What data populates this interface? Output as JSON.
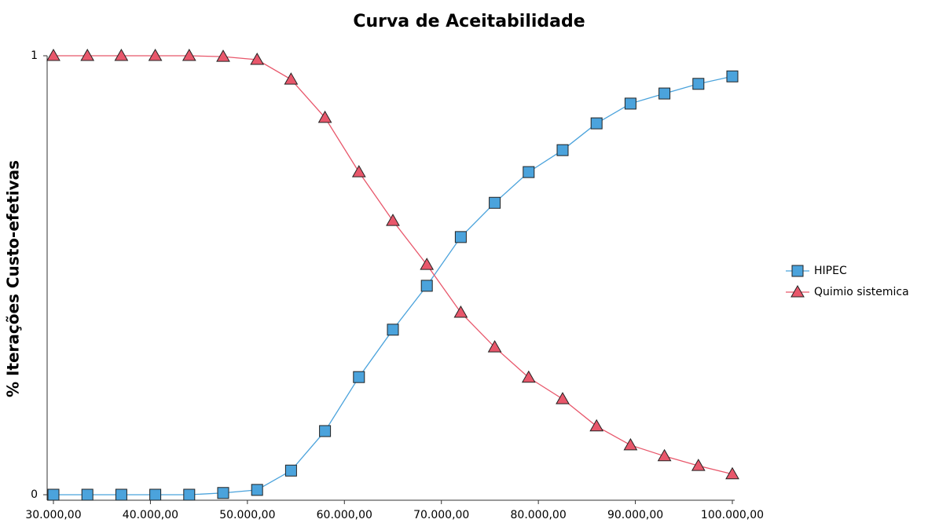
{
  "chart_data": {
    "type": "line",
    "title": "Curva de Aceitabilidade",
    "y_label": "% Iterações Custo-efetivas",
    "x": [
      30000,
      33500,
      37000,
      40500,
      44000,
      47500,
      51000,
      54500,
      58000,
      61500,
      65000,
      68500,
      72000,
      75500,
      79000,
      82500,
      86000,
      89500,
      93000,
      96500,
      100000
    ],
    "series": [
      {
        "name": "HIPEC",
        "color": "#4ba3dc",
        "marker": "square",
        "values": [
          0,
          0,
          0,
          0,
          0,
          0.004,
          0.011,
          0.055,
          0.145,
          0.268,
          0.376,
          0.476,
          0.587,
          0.665,
          0.735,
          0.785,
          0.846,
          0.891,
          0.914,
          0.936,
          0.953
        ]
      },
      {
        "name": "Quimio sistemica",
        "color": "#e8576b",
        "marker": "triangle",
        "values": [
          1,
          1,
          1,
          1,
          1,
          0.998,
          0.991,
          0.946,
          0.859,
          0.735,
          0.624,
          0.524,
          0.415,
          0.336,
          0.267,
          0.218,
          0.156,
          0.113,
          0.088,
          0.066,
          0.047
        ]
      }
    ],
    "xlim": [
      30000,
      100000
    ],
    "xticks": [
      {
        "value": 30000,
        "label": "30.000,00"
      },
      {
        "value": 40000,
        "label": "40.000,00"
      },
      {
        "value": 50000,
        "label": "50.000,00"
      },
      {
        "value": 60000,
        "label": "60.000,00"
      },
      {
        "value": 70000,
        "label": "70.000,00"
      },
      {
        "value": 80000,
        "label": "80.000,00"
      },
      {
        "value": 90000,
        "label": "90.000,00"
      },
      {
        "value": 100000,
        "label": "100.000,00"
      }
    ],
    "ylim": [
      0,
      1
    ],
    "yticks": [
      0,
      1
    ],
    "legend": "right"
  }
}
